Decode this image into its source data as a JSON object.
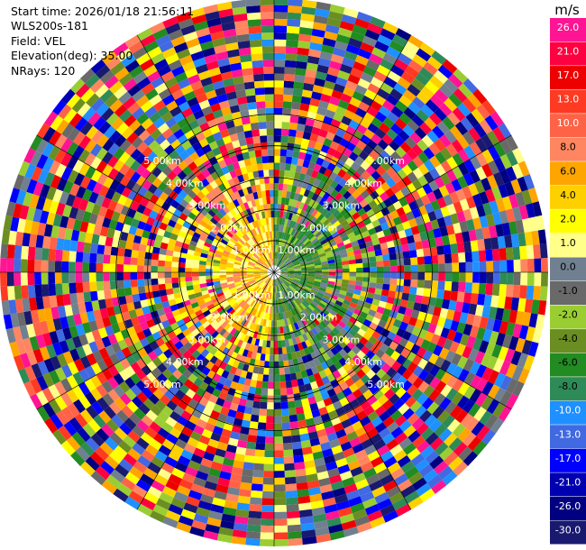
{
  "header": {
    "start_time": "Start time: 2026/01/18 21:56:11",
    "instrument": "WLS200s-181",
    "field": "Field: VEL",
    "elevation": "Elevation(deg): 35.00",
    "nrays": "NRays: 120"
  },
  "chart_data": {
    "type": "ppi",
    "field": "VEL",
    "units": "m/s",
    "nrays": 120,
    "elevation_deg": 35.0,
    "range_labels": [
      "1.00km",
      "2.00km",
      "3.00km",
      "4.00km",
      "5.00km"
    ],
    "range_rings_km": [
      1,
      2,
      3,
      4,
      5
    ],
    "max_range_km": 5.2,
    "colorbar": {
      "title": "m/s",
      "levels": [
        {
          "label": "26.0",
          "color": "#ff1493"
        },
        {
          "label": "21.0",
          "color": "#ff0040"
        },
        {
          "label": "17.0",
          "color": "#ee0000"
        },
        {
          "label": "13.0",
          "color": "#ff3a22"
        },
        {
          "label": "10.0",
          "color": "#ff6347"
        },
        {
          "label": "8.0",
          "color": "#ff8660"
        },
        {
          "label": "6.0",
          "color": "#ffa500"
        },
        {
          "label": "4.0",
          "color": "#ffd000"
        },
        {
          "label": "2.0",
          "color": "#ffff00"
        },
        {
          "label": "1.0",
          "color": "#ffff8a"
        },
        {
          "label": "0.0",
          "color": "#708090"
        },
        {
          "label": "-1.0",
          "color": "#696969"
        },
        {
          "label": "-2.0",
          "color": "#9acd32"
        },
        {
          "label": "-4.0",
          "color": "#6b8e23"
        },
        {
          "label": "-6.0",
          "color": "#228b22"
        },
        {
          "label": "-8.0",
          "color": "#2e8b57"
        },
        {
          "label": "-10.0",
          "color": "#1e90ff"
        },
        {
          "label": "-13.0",
          "color": "#4169e1"
        },
        {
          "label": "-17.0",
          "color": "#0000ff"
        },
        {
          "label": "-21.0",
          "color": "#0000b0"
        },
        {
          "label": "-26.0",
          "color": "#000080"
        },
        {
          "label": "-30.0",
          "color": "#191970"
        }
      ]
    }
  }
}
